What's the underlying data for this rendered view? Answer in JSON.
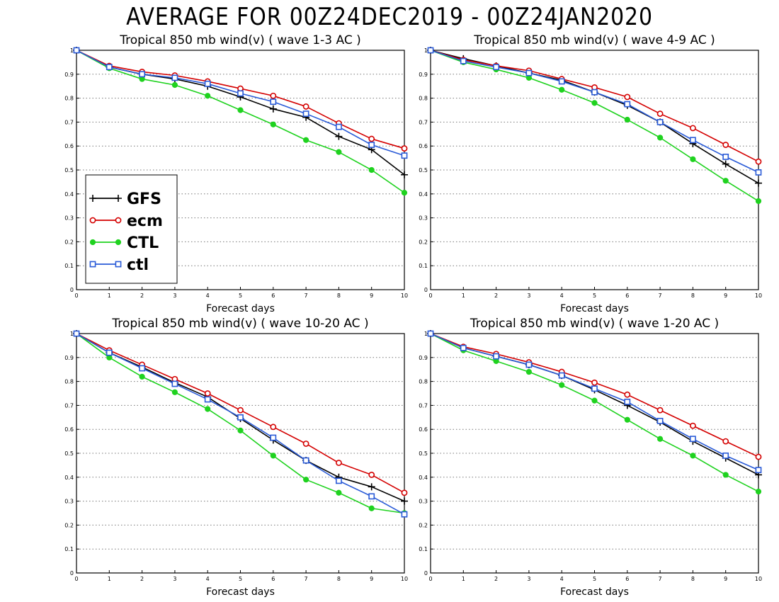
{
  "figure": {
    "title": "AVERAGE FOR 00Z24DEC2019 - 00Z24JAN2020"
  },
  "colors": {
    "GFS": "#000000",
    "ecm": "#d40000",
    "CTL": "#1fd21f",
    "ctl": "#2a5bd7"
  },
  "chart_data": [
    {
      "type": "line",
      "title": "Tropical 850 mb wind(v) ( wave 1-3 AC )",
      "xlabel": "Forecast days",
      "ylabel": "",
      "x": [
        0,
        1,
        2,
        3,
        4,
        5,
        6,
        7,
        8,
        9,
        10
      ],
      "xlim": [
        0,
        10
      ],
      "ylim": [
        0,
        1
      ],
      "yticks": [
        "0",
        "0.1",
        "0.2",
        "0.3",
        "0.4",
        "0.5",
        "0.6",
        "0.7",
        "0.8",
        "0.9",
        "1"
      ],
      "grid": "horizontal dotted",
      "legend": {
        "visible": true,
        "position": "middle-left"
      },
      "series": [
        {
          "name": "GFS",
          "marker": "plus",
          "values": [
            1.0,
            0.93,
            0.9,
            0.88,
            0.85,
            0.805,
            0.755,
            0.72,
            0.64,
            0.585,
            0.48
          ]
        },
        {
          "name": "ecm",
          "marker": "open-circle",
          "values": [
            1.0,
            0.935,
            0.91,
            0.895,
            0.87,
            0.84,
            0.81,
            0.765,
            0.695,
            0.63,
            0.59
          ]
        },
        {
          "name": "CTL",
          "marker": "filled-circle",
          "values": [
            1.0,
            0.925,
            0.88,
            0.855,
            0.81,
            0.75,
            0.69,
            0.625,
            0.575,
            0.5,
            0.405
          ]
        },
        {
          "name": "ctl",
          "marker": "open-square",
          "values": [
            1.0,
            0.93,
            0.9,
            0.885,
            0.86,
            0.82,
            0.785,
            0.735,
            0.68,
            0.605,
            0.56
          ]
        }
      ]
    },
    {
      "type": "line",
      "title": "Tropical 850 mb wind(v) ( wave 4-9 AC )",
      "xlabel": "Forecast days",
      "ylabel": "",
      "x": [
        0,
        1,
        2,
        3,
        4,
        5,
        6,
        7,
        8,
        9,
        10
      ],
      "xlim": [
        0,
        10
      ],
      "ylim": [
        0,
        1
      ],
      "yticks": [
        "0",
        "0.1",
        "0.2",
        "0.3",
        "0.4",
        "0.5",
        "0.6",
        "0.7",
        "0.8",
        "0.9",
        "1"
      ],
      "grid": "horizontal dotted",
      "legend": {
        "visible": false
      },
      "series": [
        {
          "name": "GFS",
          "marker": "plus",
          "values": [
            1.0,
            0.965,
            0.935,
            0.905,
            0.875,
            0.825,
            0.77,
            0.7,
            0.61,
            0.525,
            0.445
          ]
        },
        {
          "name": "ecm",
          "marker": "open-circle",
          "values": [
            1.0,
            0.96,
            0.935,
            0.915,
            0.88,
            0.845,
            0.805,
            0.735,
            0.675,
            0.605,
            0.535
          ]
        },
        {
          "name": "CTL",
          "marker": "filled-circle",
          "values": [
            1.0,
            0.95,
            0.92,
            0.885,
            0.835,
            0.78,
            0.71,
            0.635,
            0.545,
            0.455,
            0.37
          ]
        },
        {
          "name": "ctl",
          "marker": "open-square",
          "values": [
            1.0,
            0.955,
            0.93,
            0.905,
            0.87,
            0.825,
            0.775,
            0.7,
            0.625,
            0.555,
            0.49
          ]
        }
      ]
    },
    {
      "type": "line",
      "title": "Tropical 850 mb wind(v) ( wave 10-20 AC )",
      "xlabel": "Forecast days",
      "ylabel": "",
      "x": [
        0,
        1,
        2,
        3,
        4,
        5,
        6,
        7,
        8,
        9,
        10
      ],
      "xlim": [
        0,
        10
      ],
      "ylim": [
        0,
        1
      ],
      "yticks": [
        "0",
        "0.1",
        "0.2",
        "0.3",
        "0.4",
        "0.5",
        "0.6",
        "0.7",
        "0.8",
        "0.9",
        "1"
      ],
      "grid": "horizontal dotted",
      "legend": {
        "visible": false
      },
      "series": [
        {
          "name": "GFS",
          "marker": "plus",
          "values": [
            1.0,
            0.92,
            0.86,
            0.795,
            0.735,
            0.645,
            0.555,
            0.47,
            0.4,
            0.36,
            0.3
          ]
        },
        {
          "name": "ecm",
          "marker": "open-circle",
          "values": [
            1.0,
            0.93,
            0.87,
            0.81,
            0.75,
            0.68,
            0.61,
            0.54,
            0.46,
            0.41,
            0.335
          ]
        },
        {
          "name": "CTL",
          "marker": "filled-circle",
          "values": [
            1.0,
            0.9,
            0.82,
            0.755,
            0.685,
            0.595,
            0.49,
            0.39,
            0.335,
            0.27,
            0.25
          ]
        },
        {
          "name": "ctl",
          "marker": "open-square",
          "values": [
            1.0,
            0.92,
            0.855,
            0.79,
            0.725,
            0.65,
            0.565,
            0.47,
            0.385,
            0.32,
            0.245
          ]
        }
      ]
    },
    {
      "type": "line",
      "title": "Tropical 850 mb wind(v) ( wave 1-20 AC )",
      "xlabel": "Forecast days",
      "ylabel": "",
      "x": [
        0,
        1,
        2,
        3,
        4,
        5,
        6,
        7,
        8,
        9,
        10
      ],
      "xlim": [
        0,
        10
      ],
      "ylim": [
        0,
        1
      ],
      "yticks": [
        "0",
        "0.1",
        "0.2",
        "0.3",
        "0.4",
        "0.5",
        "0.6",
        "0.7",
        "0.8",
        "0.9",
        "1"
      ],
      "grid": "horizontal dotted",
      "legend": {
        "visible": false
      },
      "series": [
        {
          "name": "GFS",
          "marker": "plus",
          "values": [
            1.0,
            0.94,
            0.905,
            0.87,
            0.825,
            0.765,
            0.7,
            0.63,
            0.55,
            0.48,
            0.41
          ]
        },
        {
          "name": "ecm",
          "marker": "open-circle",
          "values": [
            1.0,
            0.945,
            0.915,
            0.88,
            0.84,
            0.795,
            0.745,
            0.68,
            0.615,
            0.55,
            0.485
          ]
        },
        {
          "name": "CTL",
          "marker": "filled-circle",
          "values": [
            1.0,
            0.93,
            0.885,
            0.84,
            0.785,
            0.72,
            0.64,
            0.56,
            0.49,
            0.41,
            0.34
          ]
        },
        {
          "name": "ctl",
          "marker": "open-square",
          "values": [
            1.0,
            0.94,
            0.905,
            0.87,
            0.825,
            0.77,
            0.715,
            0.635,
            0.56,
            0.49,
            0.43
          ]
        }
      ]
    }
  ]
}
